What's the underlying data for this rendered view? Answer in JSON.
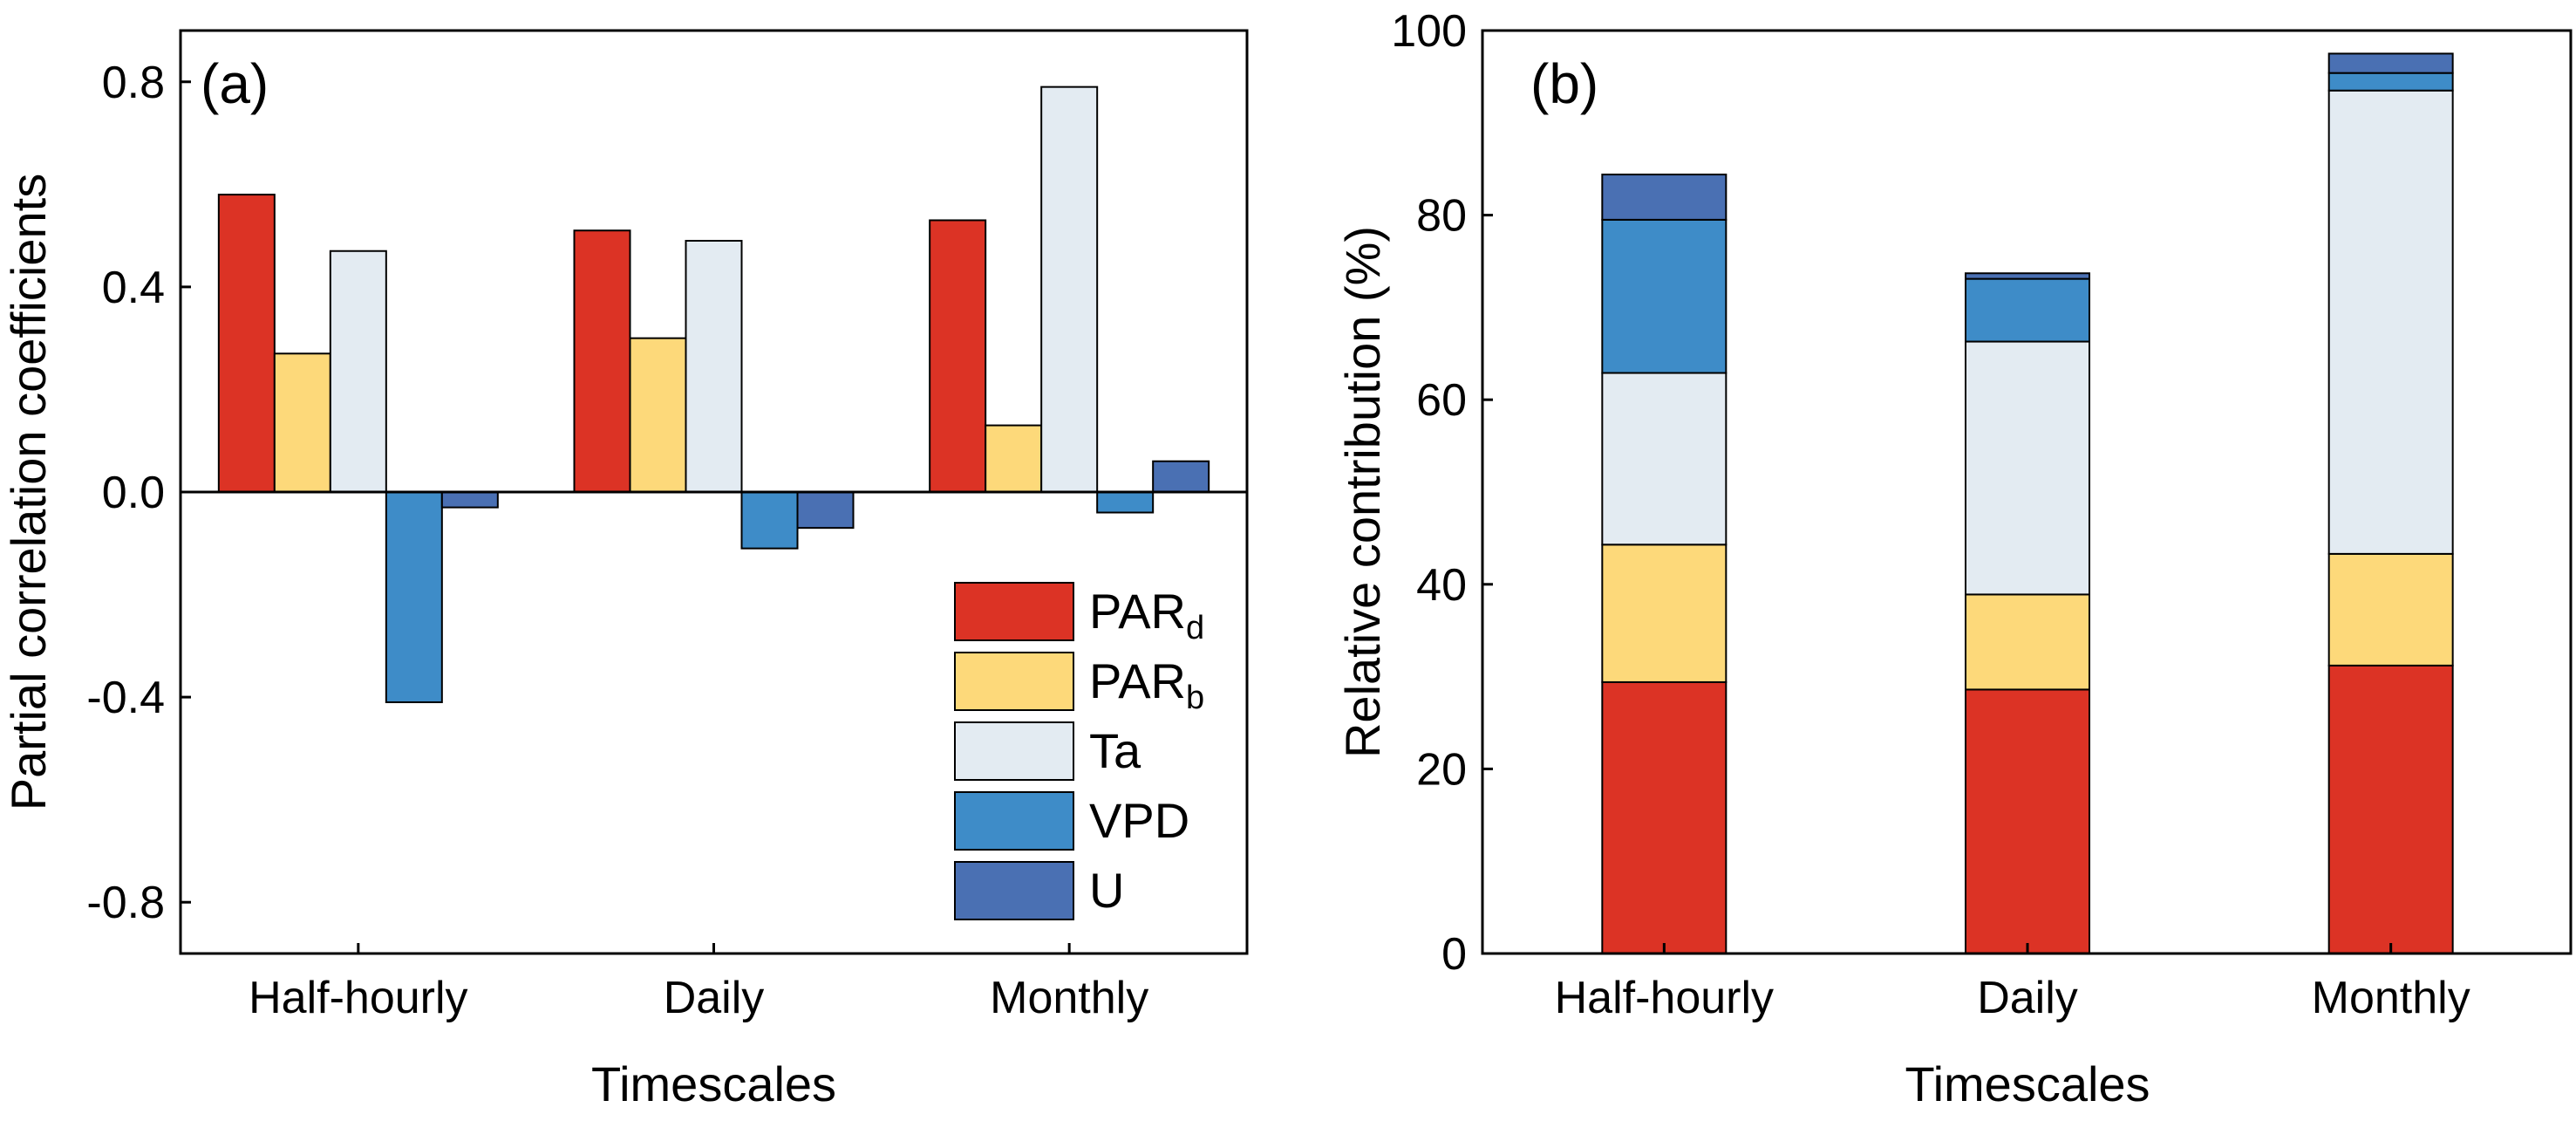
{
  "colors": {
    "PARd": "#DC3325",
    "PARb": "#FDD97A",
    "Ta": "#E3EBF2",
    "VPD": "#3E8CC8",
    "U": "#4A70B3",
    "axis": "#000000"
  },
  "legend": [
    {
      "key": "PARd",
      "main": "PAR",
      "sub": "d"
    },
    {
      "key": "PARb",
      "main": "PAR",
      "sub": "b"
    },
    {
      "key": "Ta",
      "main": "Ta",
      "sub": ""
    },
    {
      "key": "VPD",
      "main": "VPD",
      "sub": ""
    },
    {
      "key": "U",
      "main": "U",
      "sub": ""
    }
  ],
  "chart_data": [
    {
      "type": "bar",
      "panel_label": "(a)",
      "xlabel": "Timescales",
      "ylabel": "Partial correlation coefficients",
      "categories": [
        "Half-hourly",
        "Daily",
        "Monthly"
      ],
      "ylim": [
        -0.9,
        0.9
      ],
      "yticks": [
        -0.8,
        -0.4,
        0.0,
        0.4,
        0.8
      ],
      "ytick_labels": [
        "-0.8",
        "-0.4",
        "0.0",
        "0.4",
        "0.8"
      ],
      "zero_line": true,
      "legend_position": "bottom-right",
      "series": [
        {
          "key": "PARd",
          "values": [
            0.58,
            0.51,
            0.53
          ]
        },
        {
          "key": "PARb",
          "values": [
            0.27,
            0.3,
            0.13
          ]
        },
        {
          "key": "Ta",
          "values": [
            0.47,
            0.49,
            0.79
          ]
        },
        {
          "key": "VPD",
          "values": [
            -0.41,
            -0.11,
            -0.04
          ]
        },
        {
          "key": "U",
          "values": [
            -0.03,
            -0.07,
            0.06
          ]
        }
      ]
    },
    {
      "type": "stacked_bar",
      "panel_label": "(b)",
      "xlabel": "Timescales",
      "ylabel": "Relative contribution (%)",
      "categories": [
        "Half-hourly",
        "Daily",
        "Monthly"
      ],
      "ylim": [
        0,
        100
      ],
      "yticks": [
        0,
        20,
        40,
        60,
        80,
        100
      ],
      "ytick_labels": [
        "0",
        "20",
        "40",
        "60",
        "80",
        "100"
      ],
      "series": [
        {
          "key": "PARd",
          "values": [
            29.4,
            28.6,
            31.2
          ]
        },
        {
          "key": "PARb",
          "values": [
            14.9,
            10.3,
            12.1
          ]
        },
        {
          "key": "Ta",
          "values": [
            18.6,
            27.4,
            50.2
          ]
        },
        {
          "key": "VPD",
          "values": [
            16.6,
            6.8,
            1.9
          ]
        },
        {
          "key": "U",
          "values": [
            4.9,
            0.6,
            2.1
          ]
        }
      ]
    }
  ]
}
